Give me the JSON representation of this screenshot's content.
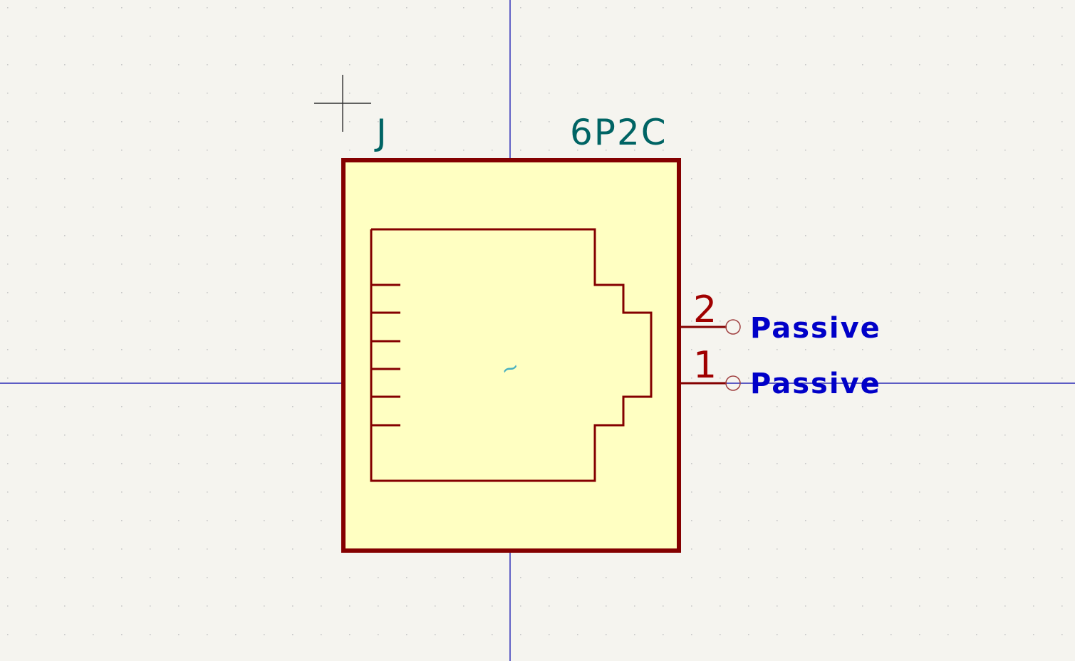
{
  "canvas": {
    "background_color": "#f5f4ef",
    "grid_dot_color": "#c8c8c8",
    "axis_color": "#0000aa",
    "cursor_color": "#303030"
  },
  "symbol": {
    "reference": "J",
    "value": "6P2C",
    "body_fill": "#ffffc2",
    "outline_color": "#840000",
    "unit_marker": "~",
    "pins": [
      {
        "number": "2",
        "type": "Passive"
      },
      {
        "number": "1",
        "type": "Passive"
      }
    ]
  }
}
